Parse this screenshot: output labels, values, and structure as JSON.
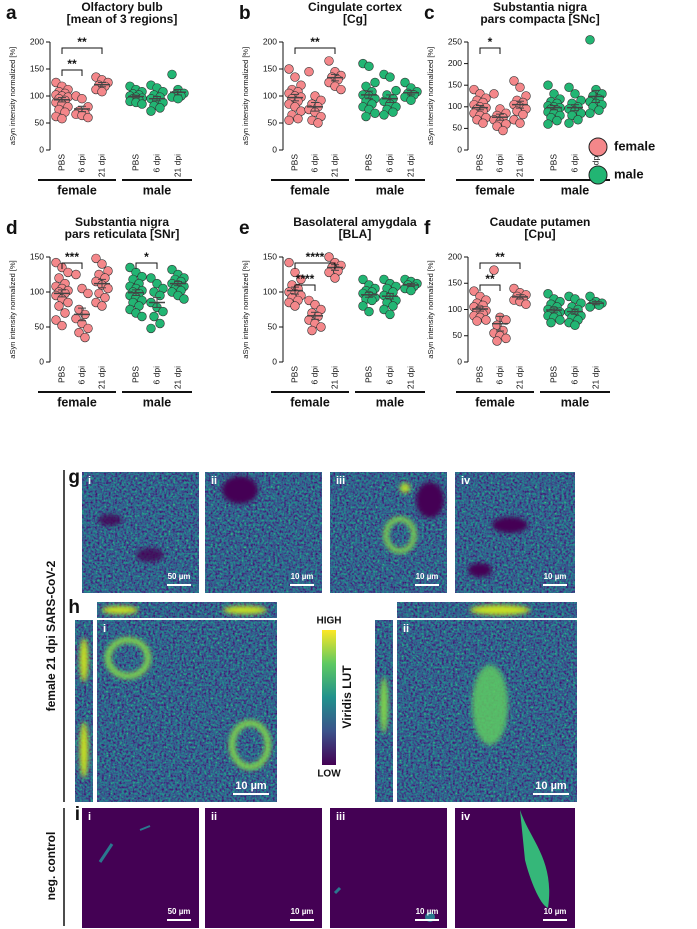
{
  "chart_data": [
    {
      "type": "dot",
      "panel": "a",
      "title": [
        "Olfactory bulb",
        "[mean of 3 regions]"
      ],
      "ylabel": "aSyn intensity normalized [%]",
      "categories": [
        "PBS",
        "6 dpi",
        "21 dpi"
      ],
      "ylim": [
        0,
        200
      ],
      "yticks": [
        0,
        50,
        100,
        150,
        200
      ],
      "series": [
        {
          "name": "female",
          "color": "#f4878a",
          "values": [
            [
              125,
              118,
              112,
              108,
              105,
              102,
              100,
              98,
              95,
              92,
              88,
              85,
              80,
              75,
              70,
              62,
              58
            ],
            [
              100,
              95,
              80,
              72,
              68,
              66,
              64,
              60
            ],
            [
              135,
              130,
              125,
              120,
              118,
              112,
              108
            ]
          ],
          "mean": [
            93,
            76,
            121
          ],
          "sem": [
            4,
            5,
            4
          ],
          "brackets": [
            {
              "pair": [
                0,
                1
              ],
              "label": "**"
            },
            {
              "pair": [
                0,
                2
              ],
              "label": "**"
            }
          ]
        },
        {
          "name": "male",
          "color": "#22b573",
          "values": [
            [
              118,
              112,
              108,
              104,
              102,
              100,
              98,
              96,
              95,
              92,
              90,
              88,
              85
            ],
            [
              120,
              115,
              108,
              102,
              98,
              95,
              92,
              88,
              82,
              78,
              72
            ],
            [
              140,
              112,
              105,
              102,
              100,
              98,
              95
            ]
          ],
          "mean": [
            99,
            95,
            107
          ],
          "sem": [
            2.5,
            4,
            5
          ]
        }
      ]
    },
    {
      "type": "dot",
      "panel": "b",
      "title": [
        "Cingulate cortex",
        "[Cg]"
      ],
      "ylabel": "aSyn intensity normalized [%]",
      "categories": [
        "PBS",
        "6 dpi",
        "21 dpi"
      ],
      "ylim": [
        0,
        200
      ],
      "yticks": [
        0,
        50,
        100,
        150,
        200
      ],
      "series": [
        {
          "name": "female",
          "color": "#f4878a",
          "values": [
            [
              150,
              135,
              120,
              112,
              108,
              105,
              100,
              98,
              95,
              90,
              85,
              80,
              72,
              65,
              58,
              55
            ],
            [
              145,
              100,
              92,
              85,
              80,
              75,
              70,
              62,
              55,
              50
            ],
            [
              165,
              145,
              138,
              135,
              130,
              125,
              118,
              112
            ]
          ],
          "mean": [
            97,
            80,
            134
          ],
          "sem": [
            6,
            8,
            6
          ],
          "brackets": [
            {
              "pair": [
                0,
                2
              ],
              "label": "**"
            }
          ]
        },
        {
          "name": "male",
          "color": "#22b573",
          "values": [
            [
              160,
              155,
              125,
              118,
              108,
              102,
              100,
              95,
              90,
              85,
              80,
              75,
              68,
              62
            ],
            [
              140,
              135,
              110,
              102,
              95,
              90,
              85,
              80,
              75,
              70,
              65
            ],
            [
              125,
              115,
              108,
              105,
              102,
              98,
              92
            ]
          ],
          "mean": [
            102,
            95,
            106
          ],
          "sem": [
            7,
            7,
            4
          ]
        }
      ]
    },
    {
      "type": "dot",
      "panel": "c",
      "title": [
        "Substantia nigra",
        "pars compacta [SNc]"
      ],
      "ylabel": "aSyn intensity normalized [%]",
      "categories": [
        "PBS",
        "6 dpi",
        "21 dpi"
      ],
      "ylim": [
        0,
        250
      ],
      "yticks": [
        0,
        50,
        100,
        150,
        200,
        250
      ],
      "series": [
        {
          "name": "female",
          "color": "#f4878a",
          "values": [
            [
              140,
              130,
              120,
              115,
              110,
              105,
              100,
              98,
              95,
              90,
              85,
              80,
              75,
              70,
              62
            ],
            [
              130,
              95,
              85,
              80,
              75,
              70,
              65,
              60,
              55,
              45
            ],
            [
              160,
              145,
              125,
              115,
              110,
              105,
              100,
              95,
              90,
              82,
              70,
              62
            ]
          ],
          "mean": [
            98,
            76,
            105
          ],
          "sem": [
            5,
            7,
            8
          ],
          "brackets": [
            {
              "pair": [
                0,
                1
              ],
              "label": "*"
            }
          ]
        },
        {
          "name": "male",
          "color": "#22b573",
          "values": [
            [
              150,
              130,
              118,
              112,
              108,
              102,
              100,
              98,
              95,
              92,
              88,
              85,
              80,
              75,
              68,
              60
            ],
            [
              145,
              130,
              115,
              108,
              100,
              95,
              90,
              85,
              80,
              70,
              62
            ],
            [
              255,
              140,
              130,
              125,
              118,
              112,
              108,
              105,
              100,
              92,
              85
            ]
          ],
          "mean": [
            98,
            98,
            124
          ],
          "sem": [
            5,
            7,
            14
          ]
        }
      ]
    },
    {
      "type": "dot",
      "panel": "d",
      "title": [
        "Substantia nigra",
        "pars reticulata [SNr]"
      ],
      "ylabel": "aSyn intensity normalized [%]",
      "categories": [
        "PBS",
        "6 dpi",
        "21 dpi"
      ],
      "ylim": [
        0,
        150
      ],
      "yticks": [
        0,
        50,
        100,
        150
      ],
      "series": [
        {
          "name": "female",
          "color": "#f4878a",
          "values": [
            [
              142,
              135,
              128,
              120,
              112,
              108,
              105,
              102,
              100,
              98,
              95,
              90,
              85,
              80,
              70,
              60,
              52
            ],
            [
              125,
              105,
              98,
              75,
              68,
              62,
              55,
              48,
              42,
              35
            ],
            [
              148,
              140,
              130,
              125,
              120,
              115,
              110,
              105,
              98,
              92,
              85,
              80
            ]
          ],
          "mean": [
            98,
            68,
            112
          ],
          "sem": [
            5,
            9,
            6
          ],
          "brackets": [
            {
              "pair": [
                0,
                1
              ],
              "label": "***"
            }
          ]
        },
        {
          "name": "male",
          "color": "#22b573",
          "values": [
            [
              135,
              128,
              122,
              118,
              112,
              108,
              105,
              102,
              100,
              98,
              95,
              92,
              88,
              85,
              80,
              75,
              70,
              65
            ],
            [
              120,
              112,
              105,
              100,
              95,
              85,
              78,
              72,
              65,
              55,
              48
            ],
            [
              132,
              125,
              120,
              118,
              115,
              112,
              110,
              108,
              105,
              102,
              100,
              95,
              90
            ]
          ],
          "mean": [
            99,
            85,
            112
          ],
          "sem": [
            4,
            7,
            3
          ],
          "brackets": [
            {
              "pair": [
                0,
                1
              ],
              "label": "*"
            }
          ]
        }
      ]
    },
    {
      "type": "dot",
      "panel": "e",
      "title": [
        "Basolateral amygdala",
        "[BLA]"
      ],
      "ylabel": "aSyn intensity normalized [%]",
      "categories": [
        "PBS",
        "6 dpi",
        "21 dpi"
      ],
      "ylim": [
        0,
        150
      ],
      "yticks": [
        0,
        50,
        100,
        150
      ],
      "series": [
        {
          "name": "female",
          "color": "#f4878a",
          "values": [
            [
              142,
              128,
              118,
              110,
              105,
              100,
              98,
              95,
              92,
              88,
              85,
              80
            ],
            [
              88,
              82,
              75,
              70,
              65,
              60,
              55,
              50,
              45
            ],
            [
              150,
              142,
              138,
              135,
              130,
              128,
              120
            ]
          ],
          "mean": [
            102,
            66,
            135
          ],
          "sem": [
            5,
            5,
            4
          ],
          "brackets": [
            {
              "pair": [
                0,
                1
              ],
              "label": "****"
            },
            {
              "pair": [
                0,
                2
              ],
              "label": "****"
            }
          ]
        },
        {
          "name": "male",
          "color": "#22b573",
          "values": [
            [
              118,
              110,
              105,
              102,
              100,
              98,
              95,
              92,
              90,
              88,
              80,
              72
            ],
            [
              118,
              112,
              108,
              105,
              100,
              95,
              92,
              88,
              85,
              80,
              75,
              68
            ],
            [
              118,
              115,
              112,
              110,
              108,
              105,
              102
            ]
          ],
          "mean": [
            96,
            94,
            110
          ],
          "sem": [
            3.5,
            4,
            2
          ]
        }
      ]
    },
    {
      "type": "dot",
      "panel": "f",
      "title": [
        "Caudate putamen",
        "[Cpu]"
      ],
      "ylabel": "aSyn intensity normalized [%]",
      "categories": [
        "PBS",
        "6 dpi",
        "21 dpi"
      ],
      "ylim": [
        0,
        200
      ],
      "yticks": [
        0,
        50,
        100,
        150,
        200
      ],
      "series": [
        {
          "name": "female",
          "color": "#f4878a",
          "values": [
            [
              135,
              125,
              118,
              112,
              108,
              105,
              100,
              98,
              95,
              92,
              88,
              85,
              80,
              78
            ],
            [
              175,
              85,
              80,
              70,
              60,
              55,
              50,
              45,
              40
            ],
            [
              140,
              132,
              128,
              125,
              120,
              118,
              115,
              110
            ]
          ],
          "mean": [
            101,
            73,
            124
          ],
          "sem": [
            4,
            14,
            4
          ],
          "brackets": [
            {
              "pair": [
                0,
                1
              ],
              "label": "**"
            },
            {
              "pair": [
                0,
                2
              ],
              "label": "**"
            }
          ]
        },
        {
          "name": "male",
          "color": "#22b573",
          "values": [
            [
              130,
              120,
              115,
              110,
              105,
              100,
              98,
              95,
              92,
              90,
              88,
              85,
              80,
              75
            ],
            [
              125,
              120,
              112,
              105,
              100,
              95,
              92,
              88,
              85,
              80,
              75,
              70
            ],
            [
              125,
              115,
              112,
              110,
              108,
              105
            ]
          ],
          "mean": [
            99,
            96,
            112
          ],
          "sem": [
            4,
            5,
            3
          ]
        }
      ]
    }
  ],
  "imaging": {
    "row_labels": {
      "infected": "female 21 dpi SARS-CoV-2",
      "control": "neg. control"
    },
    "g": {
      "label": "g",
      "tiles": [
        {
          "label": "i",
          "scale": "50 µm"
        },
        {
          "label": "ii",
          "scale": "10 µm"
        },
        {
          "label": "iii",
          "scale": "10 µm"
        },
        {
          "label": "iv",
          "scale": "10 µm"
        }
      ]
    },
    "h": {
      "label": "h",
      "tiles": [
        {
          "label": "i",
          "scale": "10 µm"
        },
        {
          "label": "ii",
          "scale": "10 µm"
        }
      ],
      "lut": {
        "title": "Viridis LUT",
        "high": "HIGH",
        "low": "LOW"
      }
    },
    "i": {
      "label": "i",
      "tiles": [
        {
          "label": "i",
          "scale": "50 µm"
        },
        {
          "label": "ii",
          "scale": "10 µm"
        },
        {
          "label": "iii",
          "scale": "10 µm"
        },
        {
          "label": "iv",
          "scale": "10 µm"
        }
      ]
    }
  }
}
